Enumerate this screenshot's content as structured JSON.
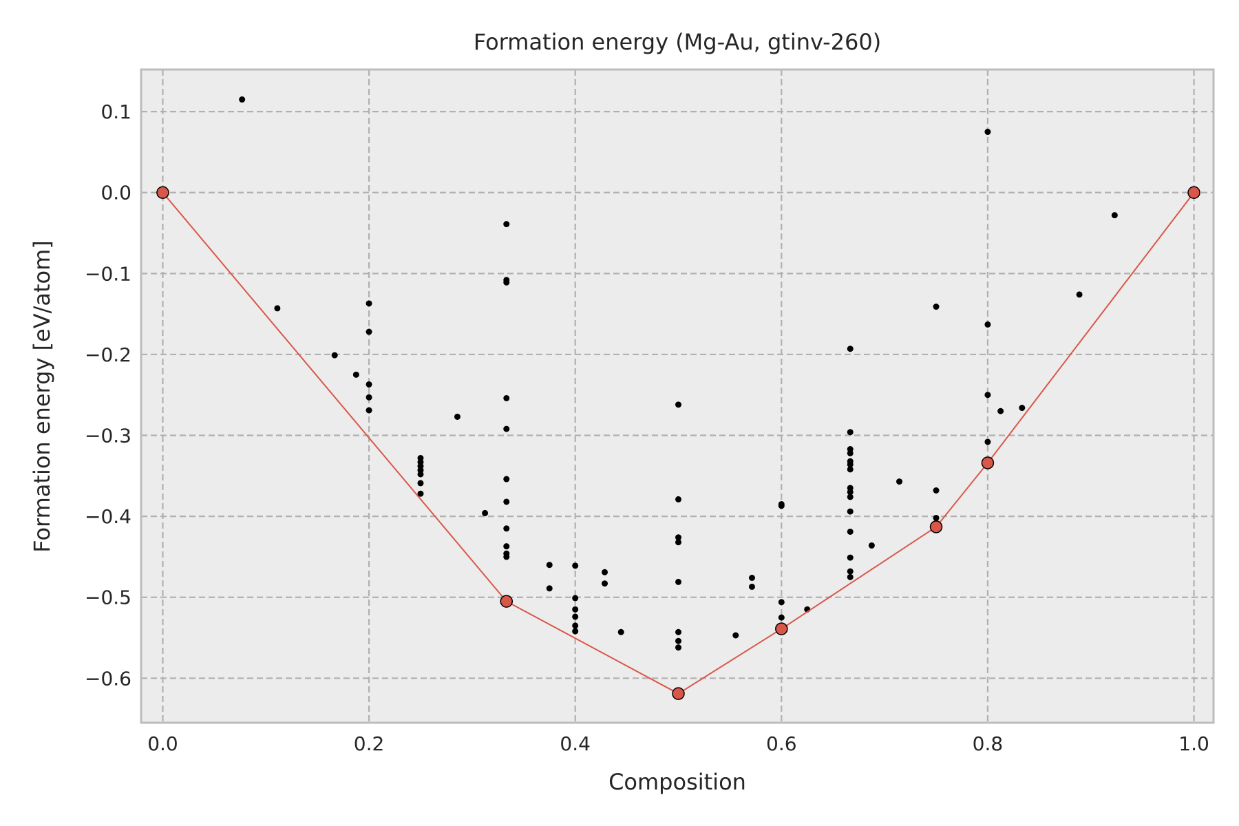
{
  "chart_data": {
    "type": "scatter",
    "title": "Formation energy (Mg-Au, gtinv-260)",
    "xlabel": "Composition",
    "ylabel": "Formation energy [eV/atom]",
    "xlim": [
      -0.021,
      1.019
    ],
    "ylim": [
      -0.655,
      0.152
    ],
    "xticks": [
      0.0,
      0.2,
      0.4,
      0.6,
      0.8,
      1.0
    ],
    "xtick_labels": [
      "0.0",
      "0.2",
      "0.4",
      "0.6",
      "0.8",
      "1.0"
    ],
    "yticks": [
      0.1,
      0.0,
      -0.1,
      -0.2,
      -0.3,
      -0.4,
      -0.5,
      -0.6
    ],
    "ytick_labels": [
      "0.1",
      "0.0",
      "−0.1",
      "−0.2",
      "−0.3",
      "−0.4",
      "−0.5",
      "−0.6"
    ],
    "grid": true,
    "colors": {
      "background": "#ececec",
      "grid": "#b0b0b0",
      "hull": "#d9574a",
      "points": "#000000",
      "frame": "#bcbcbc"
    },
    "hull": {
      "x": [
        0.0,
        0.3333,
        0.5,
        0.6,
        0.75,
        0.8,
        1.0
      ],
      "y": [
        0.0,
        -0.505,
        -0.619,
        -0.539,
        -0.413,
        -0.334,
        0.0
      ]
    },
    "points": [
      [
        0.0769,
        0.115
      ],
      [
        0.1111,
        -0.143
      ],
      [
        0.1667,
        -0.201
      ],
      [
        0.1875,
        -0.225
      ],
      [
        0.2,
        -0.137
      ],
      [
        0.2,
        -0.172
      ],
      [
        0.2,
        -0.237
      ],
      [
        0.2,
        -0.253
      ],
      [
        0.2,
        -0.269
      ],
      [
        0.25,
        -0.328
      ],
      [
        0.25,
        -0.333
      ],
      [
        0.25,
        -0.338
      ],
      [
        0.25,
        -0.343
      ],
      [
        0.25,
        -0.348
      ],
      [
        0.25,
        -0.359
      ],
      [
        0.25,
        -0.372
      ],
      [
        0.2857,
        -0.277
      ],
      [
        0.3125,
        -0.396
      ],
      [
        0.3333,
        -0.039
      ],
      [
        0.3333,
        -0.108
      ],
      [
        0.3333,
        -0.111
      ],
      [
        0.3333,
        -0.254
      ],
      [
        0.3333,
        -0.292
      ],
      [
        0.3333,
        -0.354
      ],
      [
        0.3333,
        -0.382
      ],
      [
        0.3333,
        -0.415
      ],
      [
        0.3333,
        -0.437
      ],
      [
        0.3333,
        -0.446
      ],
      [
        0.3333,
        -0.45
      ],
      [
        0.375,
        -0.46
      ],
      [
        0.375,
        -0.489
      ],
      [
        0.4,
        -0.461
      ],
      [
        0.4,
        -0.501
      ],
      [
        0.4,
        -0.515
      ],
      [
        0.4,
        -0.524
      ],
      [
        0.4,
        -0.535
      ],
      [
        0.4,
        -0.542
      ],
      [
        0.4286,
        -0.469
      ],
      [
        0.4286,
        -0.483
      ],
      [
        0.4444,
        -0.543
      ],
      [
        0.5,
        -0.262
      ],
      [
        0.5,
        -0.379
      ],
      [
        0.5,
        -0.426
      ],
      [
        0.5,
        -0.432
      ],
      [
        0.5,
        -0.481
      ],
      [
        0.5,
        -0.543
      ],
      [
        0.5,
        -0.554
      ],
      [
        0.5,
        -0.562
      ],
      [
        0.5556,
        -0.547
      ],
      [
        0.5714,
        -0.476
      ],
      [
        0.5714,
        -0.487
      ],
      [
        0.6,
        -0.385
      ],
      [
        0.6,
        -0.387
      ],
      [
        0.6,
        -0.506
      ],
      [
        0.6,
        -0.525
      ],
      [
        0.625,
        -0.515
      ],
      [
        0.6667,
        -0.193
      ],
      [
        0.6667,
        -0.296
      ],
      [
        0.6667,
        -0.317
      ],
      [
        0.6667,
        -0.322
      ],
      [
        0.6667,
        -0.332
      ],
      [
        0.6667,
        -0.336
      ],
      [
        0.6667,
        -0.342
      ],
      [
        0.6667,
        -0.365
      ],
      [
        0.6667,
        -0.37
      ],
      [
        0.6667,
        -0.376
      ],
      [
        0.6667,
        -0.394
      ],
      [
        0.6667,
        -0.419
      ],
      [
        0.6667,
        -0.451
      ],
      [
        0.6667,
        -0.468
      ],
      [
        0.6667,
        -0.475
      ],
      [
        0.6875,
        -0.436
      ],
      [
        0.7143,
        -0.357
      ],
      [
        0.75,
        -0.141
      ],
      [
        0.75,
        -0.368
      ],
      [
        0.75,
        -0.402
      ],
      [
        0.8,
        0.075
      ],
      [
        0.8,
        -0.163
      ],
      [
        0.8,
        -0.25
      ],
      [
        0.8,
        -0.308
      ],
      [
        0.8125,
        -0.27
      ],
      [
        0.8333,
        -0.266
      ],
      [
        0.8889,
        -0.126
      ],
      [
        0.9231,
        -0.028
      ]
    ]
  }
}
